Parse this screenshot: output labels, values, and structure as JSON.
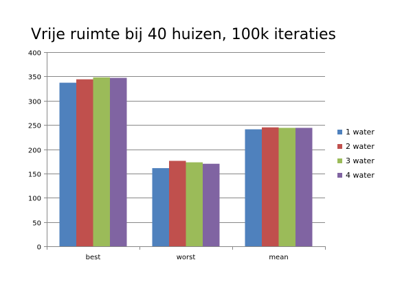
{
  "chart_data": {
    "type": "bar",
    "title": "Vrije ruimte bij 40 huizen, 100k iteraties",
    "xlabel": "",
    "ylabel": "",
    "categories": [
      "best",
      "worst",
      "mean"
    ],
    "ylim": [
      0,
      400
    ],
    "yticks": [
      0,
      50,
      100,
      150,
      200,
      250,
      300,
      350,
      400
    ],
    "grid": "horizontal",
    "legend_position": "right",
    "series": [
      {
        "name": "1 water",
        "color": "#4f81bd",
        "values": [
          337,
          161,
          241
        ]
      },
      {
        "name": "2 water",
        "color": "#c0504d",
        "values": [
          344,
          176,
          245
        ]
      },
      {
        "name": "3 water",
        "color": "#9bbb59",
        "values": [
          348,
          173,
          244
        ]
      },
      {
        "name": "4 water",
        "color": "#8064a2",
        "values": [
          347,
          170,
          244
        ]
      }
    ]
  }
}
